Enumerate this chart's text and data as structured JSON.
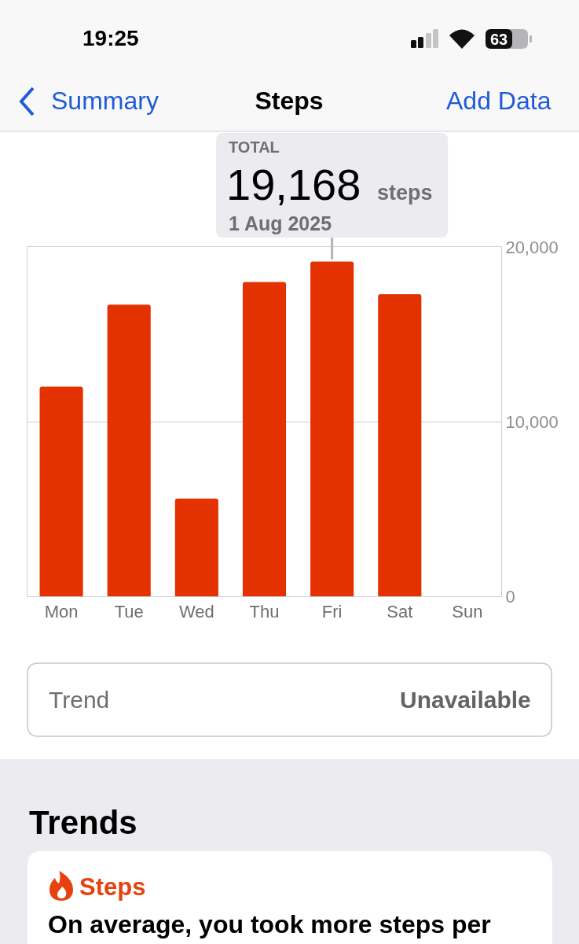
{
  "chart_data": {
    "type": "bar",
    "title": "Steps",
    "categories": [
      "Mon",
      "Tue",
      "Wed",
      "Thu",
      "Fri",
      "Sat",
      "Sun"
    ],
    "values": [
      12000,
      16700,
      5600,
      18000,
      19168,
      17300,
      null
    ],
    "color": "#e33200",
    "ylim": [
      0,
      20000
    ],
    "yticks": [
      0,
      {
        "value": 10000,
        "label": "10,000"
      },
      {
        "value": 20000,
        "label": "20,000"
      }
    ],
    "grid": "y",
    "annotations": [
      "19:25",
      "63",
      "Summary",
      "Add Data",
      "TOTAL",
      {
        "text": "19,168",
        "x": "Fri",
        "y": 19168
      },
      "steps",
      "1 Aug 2025",
      "Trend",
      "Unavailable",
      "Trends",
      "Steps",
      "On average, you took more steps per"
    ]
  }
}
